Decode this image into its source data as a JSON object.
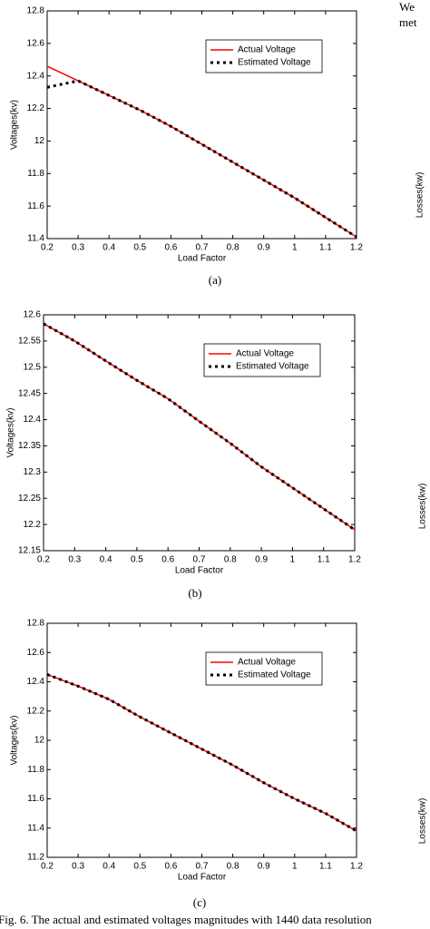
{
  "chart_data": [
    {
      "type": "line",
      "xlabel": "Load Factor",
      "ylabel": "Voltages(kv)",
      "x": [
        0.2,
        0.3,
        0.4,
        0.5,
        0.6,
        0.7,
        0.8,
        0.9,
        1.0,
        1.1,
        1.2
      ],
      "series": [
        {
          "name": "Actual Voltage",
          "color": "#ff0000",
          "style": "solid",
          "values": [
            12.46,
            12.37,
            12.28,
            12.19,
            12.09,
            11.98,
            11.87,
            11.76,
            11.65,
            11.53,
            11.41
          ]
        },
        {
          "name": "Estimated Voltage",
          "color": "#000000",
          "style": "dotted",
          "values": [
            12.33,
            12.37,
            12.28,
            12.19,
            12.09,
            11.98,
            11.87,
            11.76,
            11.65,
            11.53,
            11.41
          ]
        }
      ],
      "xlim": [
        0.2,
        1.2
      ],
      "xticks": [
        0.2,
        0.3,
        0.4,
        0.5,
        0.6,
        0.7,
        0.8,
        0.9,
        1,
        1.1,
        1.2
      ],
      "ylim": [
        11.4,
        12.8
      ],
      "yticks": [
        11.4,
        11.6,
        11.8,
        12,
        12.2,
        12.4,
        12.6,
        12.8
      ],
      "legend": "upper right"
    },
    {
      "type": "line",
      "xlabel": "Load Factor",
      "ylabel": "Voltages(kv)",
      "x": [
        0.2,
        0.3,
        0.4,
        0.5,
        0.6,
        0.7,
        0.8,
        0.9,
        1.0,
        1.1,
        1.2
      ],
      "series": [
        {
          "name": "Actual Voltage",
          "color": "#ff0000",
          "style": "solid",
          "values": [
            12.583,
            12.55,
            12.512,
            12.475,
            12.44,
            12.397,
            12.355,
            12.31,
            12.27,
            12.23,
            12.19
          ]
        },
        {
          "name": "Estimated Voltage",
          "color": "#000000",
          "style": "dotted",
          "values": [
            12.583,
            12.55,
            12.512,
            12.475,
            12.44,
            12.397,
            12.355,
            12.31,
            12.27,
            12.23,
            12.19
          ]
        }
      ],
      "xlim": [
        0.2,
        1.2
      ],
      "xticks": [
        0.2,
        0.3,
        0.4,
        0.5,
        0.6,
        0.7,
        0.8,
        0.9,
        1,
        1.1,
        1.2
      ],
      "ylim": [
        12.15,
        12.6
      ],
      "yticks": [
        12.15,
        12.2,
        12.25,
        12.3,
        12.35,
        12.4,
        12.45,
        12.5,
        12.55,
        12.6
      ],
      "legend": "upper right"
    },
    {
      "type": "line",
      "xlabel": "Load Factor",
      "ylabel": "Voltages(kv)",
      "x": [
        0.2,
        0.3,
        0.4,
        0.5,
        0.6,
        0.7,
        0.8,
        0.9,
        1.0,
        1.1,
        1.2
      ],
      "series": [
        {
          "name": "Actual Voltage",
          "color": "#ff0000",
          "style": "solid",
          "values": [
            12.45,
            12.37,
            12.28,
            12.16,
            12.05,
            11.94,
            11.83,
            11.71,
            11.6,
            11.5,
            11.38
          ]
        },
        {
          "name": "Estimated Voltage",
          "color": "#000000",
          "style": "dotted",
          "values": [
            12.45,
            12.37,
            12.28,
            12.16,
            12.05,
            11.94,
            11.83,
            11.71,
            11.6,
            11.5,
            11.38
          ]
        }
      ],
      "xlim": [
        0.2,
        1.2
      ],
      "xticks": [
        0.2,
        0.3,
        0.4,
        0.5,
        0.6,
        0.7,
        0.8,
        0.9,
        1,
        1.1,
        1.2
      ],
      "ylim": [
        11.2,
        12.8
      ],
      "yticks": [
        11.2,
        11.4,
        11.6,
        11.8,
        12,
        12.2,
        12.4,
        12.6,
        12.8
      ],
      "legend": "upper right"
    }
  ],
  "subcaptions": [
    "(a)",
    "(b)",
    "(c)"
  ],
  "caption": "Fig. 6. The actual and estimated voltages magnitudes with 1440 data resolution",
  "side_text": [
    "We",
    "met",
    "Losses(kw)",
    "Losses(kw)",
    "Losses(kw)"
  ]
}
